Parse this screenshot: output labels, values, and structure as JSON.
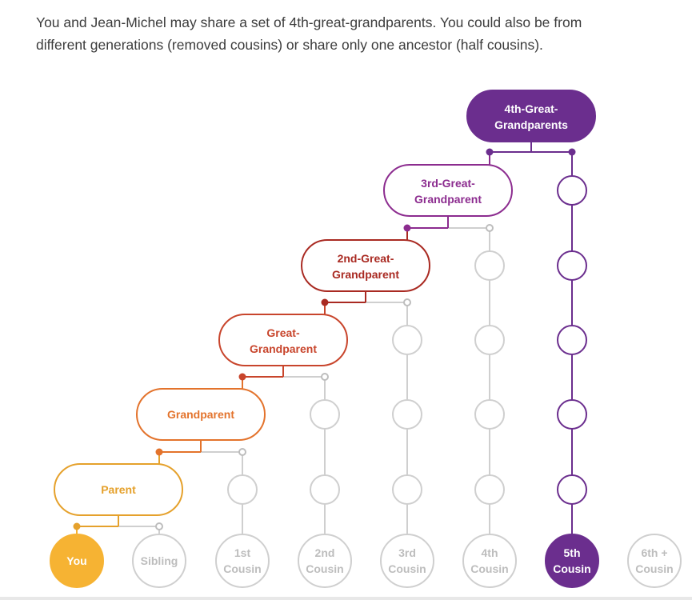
{
  "intro": {
    "line1": "You and Jean-Michel may share a set of 4th-great-grandparents. You could also be from",
    "line2": "different generations (removed cousins) or share only one ancestor (half cousins)."
  },
  "colors": {
    "you": "#f6b333",
    "parent": "#e5a12c",
    "grandparent": "#e3732c",
    "great_grandparent": "#c8452c",
    "second_great": "#a92a22",
    "third_great": "#8c2c8f",
    "fourth_great": "#6b2e8e",
    "inactive": "#cfcfcf",
    "inactive_text": "#bdbdbd"
  },
  "ancestors": [
    {
      "id": "parent",
      "line1": "Parent",
      "line2": ""
    },
    {
      "id": "grandparent",
      "line1": "Grandparent",
      "line2": ""
    },
    {
      "id": "great-grandparent",
      "line1": "Great-",
      "line2": "Grandparent"
    },
    {
      "id": "2nd-great-grandparent",
      "line1": "2nd-Great-",
      "line2": "Grandparent"
    },
    {
      "id": "3rd-great-grandparent",
      "line1": "3rd-Great-",
      "line2": "Grandparent"
    },
    {
      "id": "4th-great-grandparents",
      "line1": "4th-Great-",
      "line2": "Grandparents"
    }
  ],
  "relatives": [
    {
      "id": "you",
      "line1": "You",
      "line2": "",
      "state": "you"
    },
    {
      "id": "sibling",
      "line1": "Sibling",
      "line2": "",
      "state": "inactive"
    },
    {
      "id": "1st-cousin",
      "line1": "1st",
      "line2": "Cousin",
      "state": "inactive"
    },
    {
      "id": "2nd-cousin",
      "line1": "2nd",
      "line2": "Cousin",
      "state": "inactive"
    },
    {
      "id": "3rd-cousin",
      "line1": "3rd",
      "line2": "Cousin",
      "state": "inactive"
    },
    {
      "id": "4th-cousin",
      "line1": "4th",
      "line2": "Cousin",
      "state": "inactive"
    },
    {
      "id": "5th-cousin",
      "line1": "5th",
      "line2": "Cousin",
      "state": "highlighted"
    },
    {
      "id": "6th-cousin",
      "line1": "6th +",
      "line2": "Cousin",
      "state": "inactive"
    }
  ]
}
